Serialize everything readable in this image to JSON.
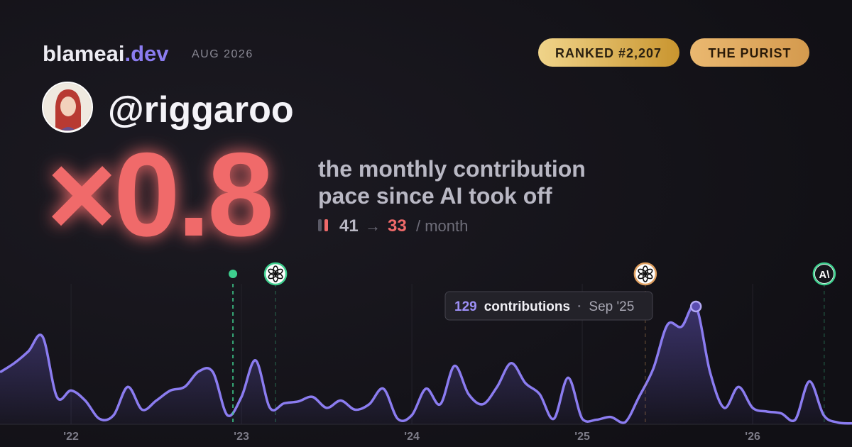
{
  "brand": {
    "name": "blameai",
    "tld": ".dev",
    "date": "AUG 2026"
  },
  "badges": [
    "RANKED #2,207",
    "THE PURIST"
  ],
  "handle": "@riggaroo",
  "multiplier": "×0.8",
  "description": [
    "the monthly contribution",
    "pace since AI took off"
  ],
  "pace": {
    "before": 41,
    "arrow": "→",
    "after": 33,
    "unit": "/ month"
  },
  "chart_data": {
    "type": "area",
    "color": "#8b7cf0",
    "x": [
      2021.583,
      2021.667,
      2021.75,
      2021.833,
      2021.917,
      2022,
      2022.083,
      2022.167,
      2022.25,
      2022.333,
      2022.417,
      2022.5,
      2022.583,
      2022.667,
      2022.75,
      2022.833,
      2022.917,
      2023,
      2023.083,
      2023.167,
      2023.25,
      2023.333,
      2023.417,
      2023.5,
      2023.583,
      2023.667,
      2023.75,
      2023.833,
      2023.917,
      2024,
      2024.083,
      2024.167,
      2024.25,
      2024.333,
      2024.417,
      2024.5,
      2024.583,
      2024.667,
      2024.75,
      2024.833,
      2024.917,
      2025,
      2025.083,
      2025.167,
      2025.25,
      2025.333,
      2025.417,
      2025.5,
      2025.583,
      2025.667,
      2025.75,
      2025.833,
      2025.917,
      2026,
      2026.083,
      2026.167,
      2026.25,
      2026.333,
      2026.417,
      2026.5,
      2026.583
    ],
    "values": [
      57,
      67,
      80,
      96,
      30,
      37,
      26,
      6,
      10,
      41,
      16,
      26,
      37,
      41,
      58,
      57,
      10,
      30,
      70,
      18,
      23,
      25,
      30,
      18,
      26,
      16,
      22,
      39,
      6,
      10,
      39,
      22,
      64,
      33,
      22,
      41,
      67,
      45,
      33,
      6,
      51,
      6,
      5,
      8,
      2,
      30,
      61,
      109,
      107,
      129,
      57,
      18,
      41,
      18,
      14,
      12,
      5,
      47,
      10,
      2,
      1
    ],
    "xlim": [
      2021.583,
      2026.583
    ],
    "xticks": [
      {
        "value": 2022,
        "label": "'22"
      },
      {
        "value": 2023,
        "label": "'23"
      },
      {
        "value": 2024,
        "label": "'24"
      },
      {
        "value": 2025,
        "label": "'25"
      },
      {
        "value": 2026,
        "label": "'26"
      }
    ],
    "ylim": [
      0,
      140
    ],
    "grid": true,
    "events": [
      {
        "x": 2022.95,
        "color": "#3ecf8e"
      },
      {
        "x": 2023.2,
        "color": "#3ecf8e"
      },
      {
        "x": 2025.37,
        "color": "#e0a060"
      },
      {
        "x": 2026.42,
        "color": "#3ecf8e",
        "icon": "A\\"
      }
    ],
    "tooltip": {
      "index": 49,
      "unit": "contributions",
      "separator": "·",
      "date": "Sep '25"
    }
  }
}
